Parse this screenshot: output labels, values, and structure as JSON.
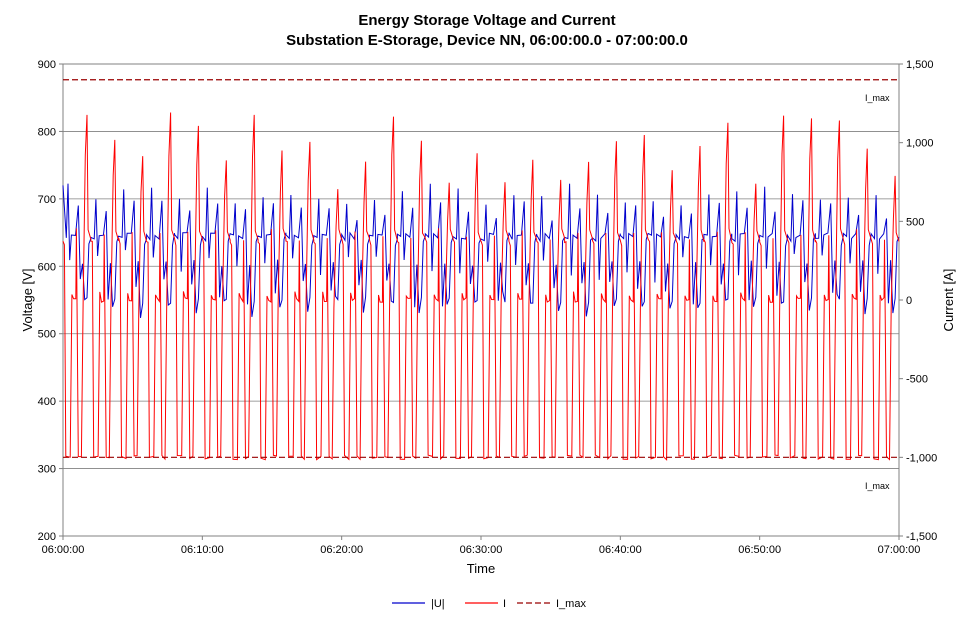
{
  "chart_data": {
    "type": "line",
    "title": "Energy Storage Voltage and Current",
    "subtitle": "Substation E-Storage, Device NN, 06:00:00.0 - 07:00:00.0",
    "xlabel": "Time",
    "ylabel_left": "Voltage [V]",
    "ylabel_right": "Current [A]",
    "x_ticks": [
      "06:00:00",
      "06:10:00",
      "06:20:00",
      "06:30:00",
      "06:40:00",
      "06:50:00",
      "07:00:00"
    ],
    "y_left_ticks": [
      "900",
      "800",
      "700",
      "600",
      "500",
      "400",
      "300",
      "200"
    ],
    "y_right_ticks": [
      "1,500",
      "1,000",
      "500",
      "0",
      "-500",
      "-1,000",
      "-1,500"
    ],
    "ylim_left": [
      200,
      900
    ],
    "ylim_right": [
      -1500,
      1500
    ],
    "xlim_minutes": [
      0,
      60
    ],
    "grid": true,
    "legend_position": "bottom",
    "annotations": [
      {
        "text": "I_max",
        "value": 1400,
        "axis": "right"
      },
      {
        "text": "I_max",
        "value": -1000,
        "axis": "right"
      }
    ],
    "cycle_period_minutes": 2,
    "series": [
      {
        "name": "|U|",
        "axis": "left",
        "color": "#0000CC",
        "style": "solid",
        "base_level": 645,
        "peak_max": 720,
        "dip_min": 500,
        "start_value": 720
      },
      {
        "name": "I",
        "axis": "right",
        "color": "#FF0000",
        "style": "solid",
        "base_level": 380,
        "trough_level": -1000,
        "plateau_level": 0,
        "peak_max": 1180
      },
      {
        "name": "I_max",
        "axis": "right",
        "color": "#990000",
        "style": "dashed",
        "values": [
          1400,
          -1000
        ]
      }
    ]
  }
}
